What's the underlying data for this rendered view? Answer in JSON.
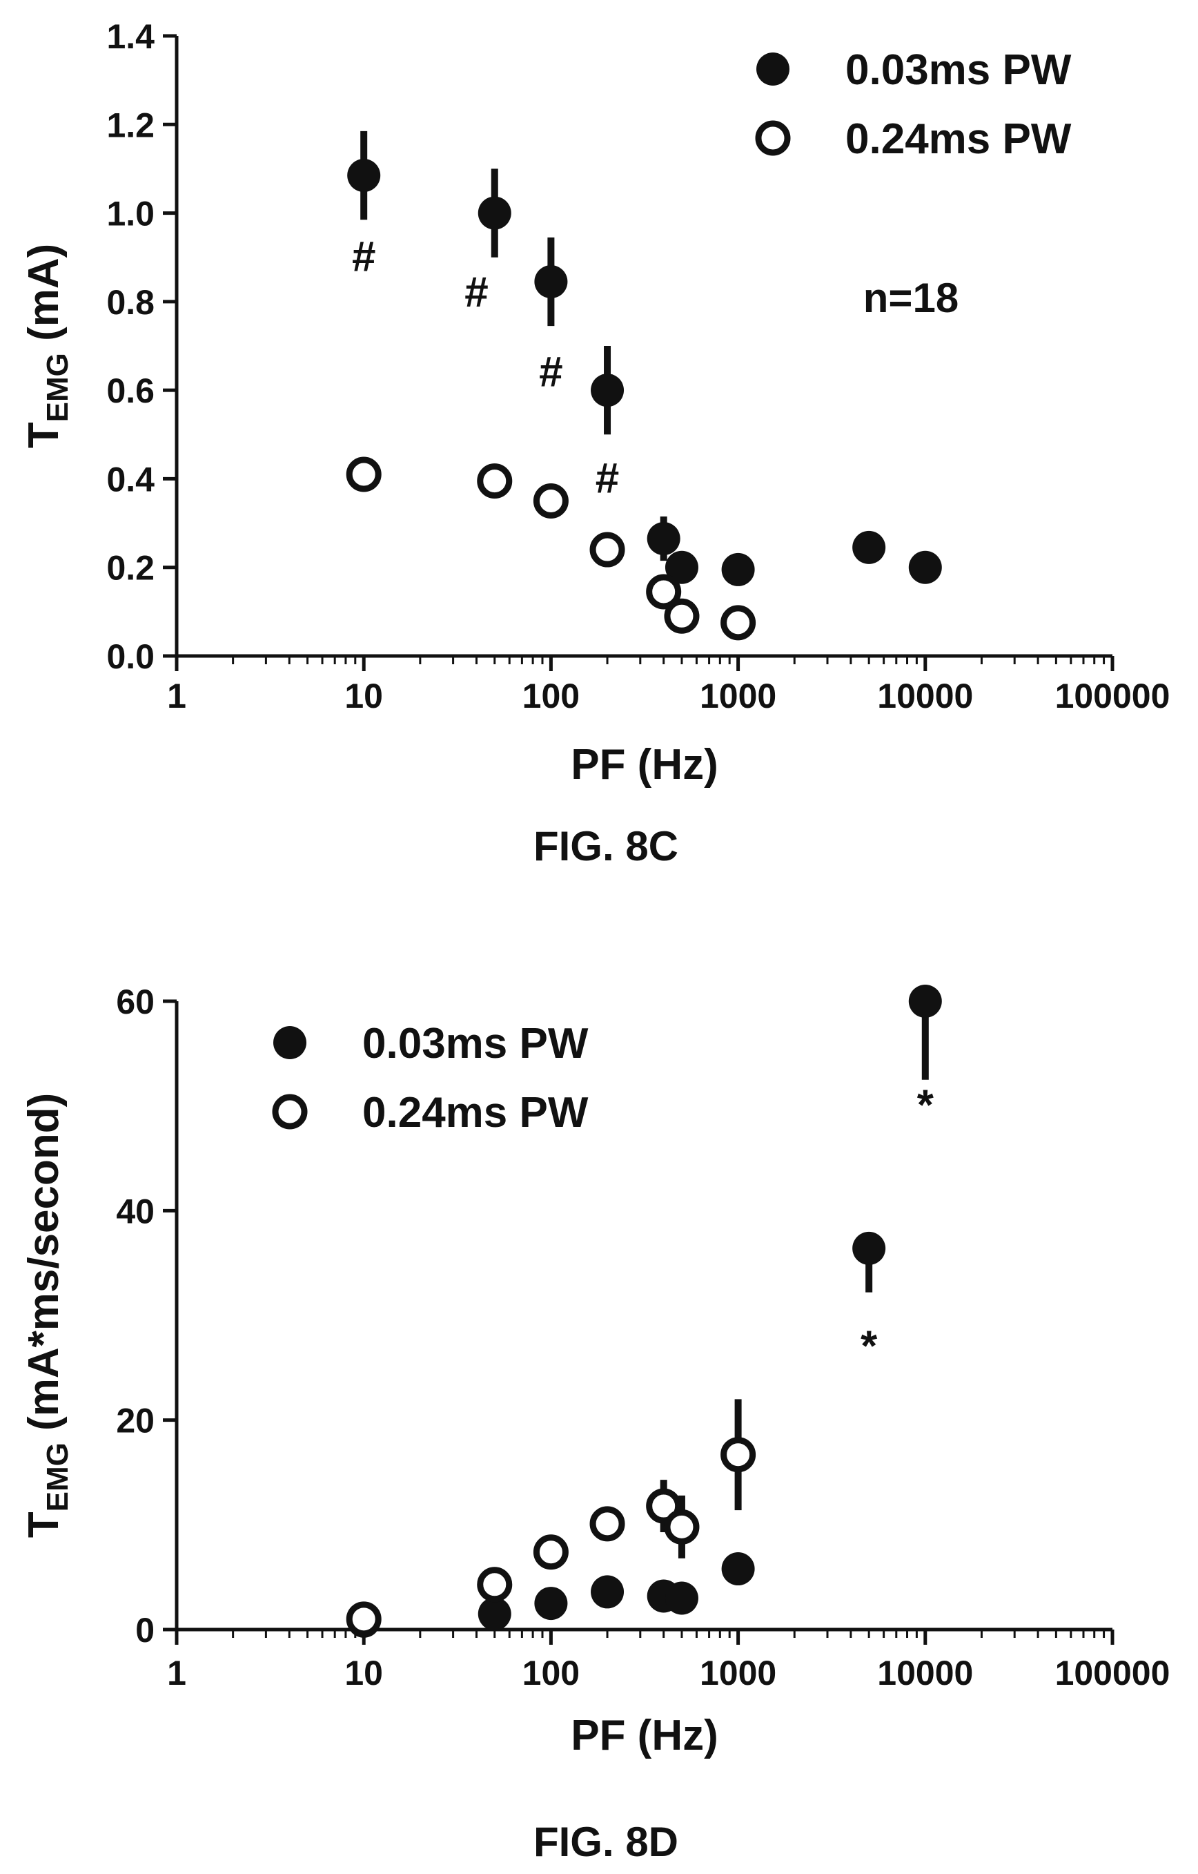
{
  "chart_data": [
    {
      "type": "scatter",
      "caption": "FIG. 8C",
      "ylabel_main": "T",
      "ylabel_sub": "EMG",
      "ylabel_rest": " (mA)",
      "xlabel": "PF (Hz)",
      "xscale": "log",
      "xlim": [
        1,
        100000
      ],
      "ylim": [
        0,
        1.4
      ],
      "xticks": [
        1,
        10,
        100,
        1000,
        10000,
        100000
      ],
      "xtick_labels": [
        "1",
        "10",
        "100",
        "1000",
        "10000",
        "100000"
      ],
      "yticks": [
        0,
        0.2,
        0.4,
        0.6,
        0.8,
        1.0,
        1.2,
        1.4
      ],
      "ytick_labels": [
        "0.0",
        "0.2",
        "0.4",
        "0.6",
        "0.8",
        "1.0",
        "1.2",
        "1.4"
      ],
      "legend_position": "top-right",
      "annotation": "n=18",
      "series": [
        {
          "name": "0.03ms PW",
          "marker": "filled",
          "points": [
            {
              "x": 10,
              "y": 1.085,
              "err": 0.1
            },
            {
              "x": 50,
              "y": 1.0,
              "err": 0.1
            },
            {
              "x": 100,
              "y": 0.845,
              "err": 0.1
            },
            {
              "x": 200,
              "y": 0.6,
              "err": 0.1
            },
            {
              "x": 400,
              "y": 0.265,
              "err": 0.05
            },
            {
              "x": 500,
              "y": 0.2,
              "err": 0
            },
            {
              "x": 1000,
              "y": 0.195,
              "err": 0
            },
            {
              "x": 5000,
              "y": 0.245,
              "err": 0
            },
            {
              "x": 10000,
              "y": 0.2,
              "err": 0
            }
          ]
        },
        {
          "name": "0.24ms PW",
          "marker": "open",
          "points": [
            {
              "x": 10,
              "y": 0.41,
              "err": 0
            },
            {
              "x": 50,
              "y": 0.395,
              "err": 0
            },
            {
              "x": 100,
              "y": 0.35,
              "err": 0
            },
            {
              "x": 200,
              "y": 0.24,
              "err": 0
            },
            {
              "x": 400,
              "y": 0.145,
              "err": 0
            },
            {
              "x": 500,
              "y": 0.09,
              "err": 0
            },
            {
              "x": 1000,
              "y": 0.075,
              "err": 0
            }
          ]
        }
      ],
      "significance": [
        {
          "symbol": "#",
          "x": 10,
          "y": 0.9
        },
        {
          "symbol": "#",
          "x": 40,
          "y": 0.82
        },
        {
          "symbol": "#",
          "x": 100,
          "y": 0.64
        },
        {
          "symbol": "#",
          "x": 200,
          "y": 0.4
        }
      ]
    },
    {
      "type": "scatter",
      "caption": "FIG. 8D",
      "ylabel_main": "T",
      "ylabel_sub": "EMG",
      "ylabel_rest": " (mA*ms/second)",
      "xlabel": "PF (Hz)",
      "xscale": "log",
      "xlim": [
        1,
        100000
      ],
      "ylim": [
        0,
        60
      ],
      "xticks": [
        1,
        10,
        100,
        1000,
        10000,
        100000
      ],
      "xtick_labels": [
        "1",
        "10",
        "100",
        "1000",
        "10000",
        "100000"
      ],
      "yticks": [
        0,
        20,
        40,
        60
      ],
      "ytick_labels": [
        "0",
        "20",
        "40",
        "60"
      ],
      "legend_position": "top-left",
      "series": [
        {
          "name": "0.03ms PW",
          "marker": "filled",
          "points": [
            {
              "x": 10,
              "y": 0.8,
              "err": 0
            },
            {
              "x": 50,
              "y": 1.5,
              "err": 0
            },
            {
              "x": 100,
              "y": 2.5,
              "err": 0
            },
            {
              "x": 200,
              "y": 3.6,
              "err": 0
            },
            {
              "x": 400,
              "y": 3.2,
              "err": 0
            },
            {
              "x": 500,
              "y": 3.0,
              "err": 0
            },
            {
              "x": 1000,
              "y": 5.8,
              "err": 0
            },
            {
              "x": 5000,
              "y": 36.4,
              "err": 4.2
            },
            {
              "x": 10000,
              "y": 60.0,
              "err": 7.5
            }
          ]
        },
        {
          "name": "0.24ms PW",
          "marker": "open",
          "points": [
            {
              "x": 10,
              "y": 1.0,
              "err": 0
            },
            {
              "x": 50,
              "y": 4.3,
              "err": 0
            },
            {
              "x": 100,
              "y": 7.4,
              "err": 0
            },
            {
              "x": 200,
              "y": 10.1,
              "err": 0
            },
            {
              "x": 400,
              "y": 11.8,
              "err": 2.5
            },
            {
              "x": 500,
              "y": 9.8,
              "err": 3.0
            },
            {
              "x": 1000,
              "y": 16.7,
              "err": 5.3
            }
          ]
        }
      ],
      "significance": [
        {
          "symbol": "*",
          "x": 5000,
          "y": 27
        },
        {
          "symbol": "*",
          "x": 10000,
          "y": 50
        }
      ]
    }
  ]
}
